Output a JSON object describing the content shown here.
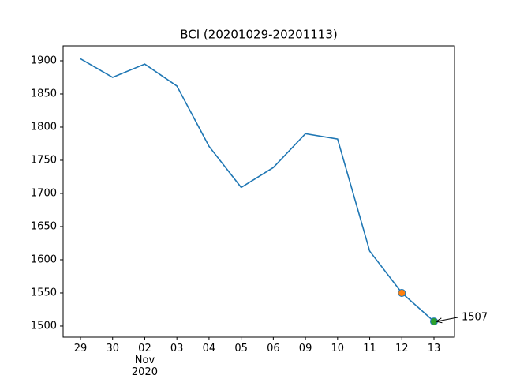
{
  "chart_data": {
    "type": "line",
    "title": "BCI (20201029-20201113)",
    "categories": [
      "29",
      "30",
      "02\nNov\n2020",
      "03",
      "04",
      "05",
      "06",
      "09",
      "10",
      "11",
      "12",
      "13"
    ],
    "values": [
      1903,
      1875,
      1895,
      1862,
      1771,
      1709,
      1739,
      1790,
      1782,
      1613,
      1550,
      1507
    ],
    "color": "#1f77b4",
    "marker_colors": [
      null,
      null,
      null,
      null,
      null,
      null,
      null,
      null,
      null,
      null,
      "#ff7f0e",
      "#2ca02c"
    ],
    "ylim": [
      1483.3,
      1922.6
    ],
    "yticks": [
      1500,
      1550,
      1600,
      1650,
      1700,
      1750,
      1800,
      1850,
      1900
    ],
    "grid": false
  }
}
